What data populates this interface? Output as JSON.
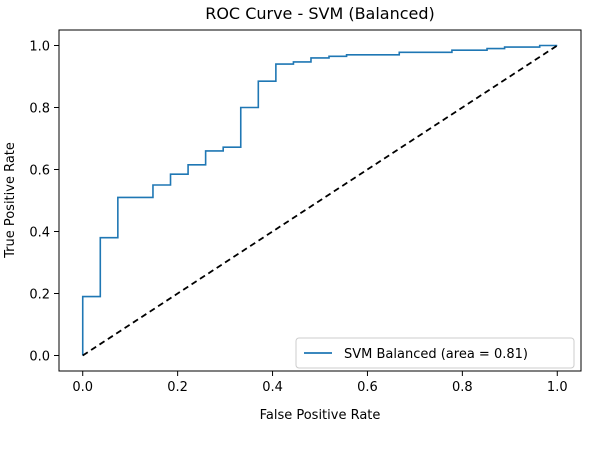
{
  "chart_data": {
    "type": "line",
    "title": "ROC Curve - SVM (Balanced)",
    "xlabel": "False Positive Rate",
    "ylabel": "True Positive Rate",
    "xlim": [
      -0.05,
      1.05
    ],
    "ylim": [
      -0.05,
      1.05
    ],
    "xticks": [
      0.0,
      0.2,
      0.4,
      0.6,
      0.8,
      1.0
    ],
    "yticks": [
      0.0,
      0.2,
      0.4,
      0.6,
      0.8,
      1.0
    ],
    "xtick_labels": [
      "0.0",
      "0.2",
      "0.4",
      "0.6",
      "0.8",
      "1.0"
    ],
    "ytick_labels": [
      "0.0",
      "0.2",
      "0.4",
      "0.6",
      "0.8",
      "1.0"
    ],
    "grid": false,
    "legend_position": "lower-right",
    "series": [
      {
        "name": "SVM Balanced (area = 0.81)",
        "style": "solid",
        "color": "#1f77b4",
        "x": [
          0.0,
          0.0,
          0.037,
          0.037,
          0.074,
          0.074,
          0.148,
          0.148,
          0.185,
          0.185,
          0.222,
          0.222,
          0.259,
          0.259,
          0.296,
          0.296,
          0.333,
          0.333,
          0.37,
          0.37,
          0.407,
          0.407,
          0.444,
          0.444,
          0.481,
          0.481,
          0.519,
          0.519,
          0.556,
          0.556,
          0.667,
          0.667,
          0.778,
          0.778,
          0.852,
          0.852,
          0.889,
          0.889,
          0.963,
          0.963,
          1.0
        ],
        "y": [
          0.0,
          0.19,
          0.19,
          0.38,
          0.38,
          0.51,
          0.51,
          0.55,
          0.55,
          0.585,
          0.585,
          0.615,
          0.615,
          0.66,
          0.66,
          0.672,
          0.672,
          0.8,
          0.8,
          0.885,
          0.885,
          0.94,
          0.94,
          0.947,
          0.947,
          0.96,
          0.96,
          0.965,
          0.965,
          0.97,
          0.97,
          0.978,
          0.978,
          0.985,
          0.985,
          0.99,
          0.99,
          0.995,
          0.995,
          1.0,
          1.0
        ]
      },
      {
        "name": "",
        "style": "dashed",
        "color": "#000000",
        "x": [
          0.0,
          1.0
        ],
        "y": [
          0.0,
          1.0
        ]
      }
    ]
  }
}
